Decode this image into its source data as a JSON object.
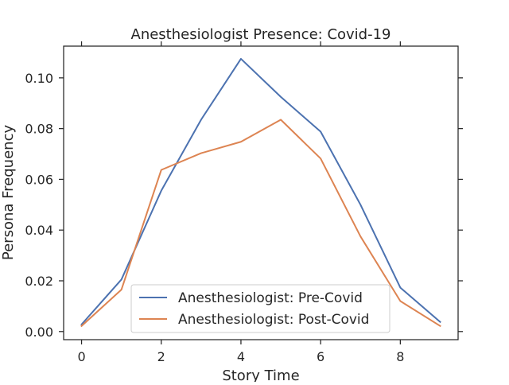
{
  "chart_data": {
    "type": "line",
    "title": "Anesthesiologist Presence: Covid-19",
    "xlabel": "Story Time",
    "ylabel": "Persona Frequency",
    "xlim": [
      -0.45,
      9.45
    ],
    "ylim": [
      -0.0032,
      0.1125
    ],
    "xticks": [
      0,
      2,
      4,
      6,
      8
    ],
    "yticks": [
      0.0,
      0.02,
      0.04,
      0.06,
      0.08,
      0.1
    ],
    "ytick_labels": [
      "0.00",
      "0.02",
      "0.04",
      "0.06",
      "0.08",
      "0.10"
    ],
    "grid": false,
    "legend_position": "lower center",
    "x": [
      0,
      1,
      2,
      3,
      4,
      5,
      6,
      7,
      8,
      9
    ],
    "series": [
      {
        "name": "Anesthesiologist: Pre-Covid",
        "color": "#4c72b0",
        "values": [
          0.0028,
          0.0205,
          0.0555,
          0.0835,
          0.1075,
          0.0925,
          0.0788,
          0.05,
          0.0173,
          0.0038
        ]
      },
      {
        "name": "Anesthesiologist: Post-Covid",
        "color": "#dd8452",
        "values": [
          0.0022,
          0.0165,
          0.0637,
          0.0703,
          0.0748,
          0.0835,
          0.0682,
          0.0375,
          0.012,
          0.0022
        ]
      }
    ]
  }
}
